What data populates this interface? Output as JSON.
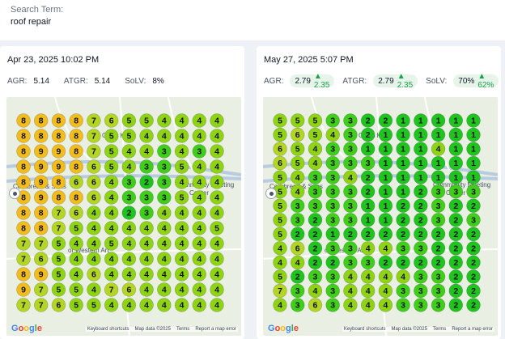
{
  "search": {
    "label": "Search Term:",
    "value": "roof repair"
  },
  "panels": [
    {
      "date": "Apr 23, 2025 10:02 PM",
      "metrics": {
        "agr_label": "AGR:",
        "agr": "5.14",
        "atgr_label": "ATGR:",
        "atgr": "5.14",
        "solv_label": "SoLV:",
        "solv": "8%"
      },
      "grid": [
        [
          8,
          8,
          8,
          8,
          7,
          6,
          5,
          5,
          4,
          4,
          4,
          4
        ],
        [
          8,
          8,
          8,
          8,
          7,
          5,
          5,
          4,
          4,
          4,
          4,
          4
        ],
        [
          8,
          9,
          9,
          8,
          7,
          5,
          4,
          4,
          3,
          4,
          3,
          4
        ],
        [
          8,
          9,
          9,
          8,
          6,
          5,
          4,
          3,
          3,
          5,
          4,
          4
        ],
        [
          8,
          9,
          8,
          6,
          6,
          4,
          3,
          2,
          3,
          4,
          4,
          4
        ],
        [
          8,
          9,
          8,
          8,
          6,
          4,
          3,
          3,
          3,
          5,
          4,
          4
        ],
        [
          8,
          8,
          7,
          6,
          4,
          4,
          2,
          3,
          4,
          4,
          4,
          4
        ],
        [
          8,
          8,
          7,
          5,
          4,
          4,
          4,
          4,
          4,
          4,
          4,
          5
        ],
        [
          7,
          7,
          5,
          4,
          4,
          5,
          4,
          4,
          4,
          4,
          4,
          4
        ],
        [
          7,
          6,
          5,
          4,
          4,
          4,
          4,
          4,
          4,
          4,
          4,
          4
        ],
        [
          8,
          9,
          5,
          4,
          6,
          4,
          4,
          4,
          4,
          4,
          4,
          4
        ],
        [
          9,
          7,
          5,
          5,
          4,
          7,
          6,
          4,
          4,
          4,
          4,
          4
        ],
        [
          7,
          7,
          6,
          5,
          5,
          4,
          4,
          4,
          4,
          4,
          4,
          4
        ]
      ]
    },
    {
      "date": "May 27, 2025 5:07 PM",
      "metrics": {
        "agr_label": "AGR:",
        "agr": "2.79",
        "agr_delta": "2.35",
        "atgr_label": "ATGR:",
        "atgr": "2.79",
        "atgr_delta": "2.35",
        "solv_label": "SoLV:",
        "solv": "70%",
        "solv_delta": "62%"
      },
      "grid": [
        [
          5,
          5,
          5,
          3,
          3,
          2,
          2,
          1,
          1,
          1,
          1,
          1
        ],
        [
          5,
          6,
          5,
          4,
          3,
          2,
          1,
          1,
          1,
          1,
          1,
          1
        ],
        [
          6,
          5,
          4,
          3,
          3,
          1,
          1,
          1,
          1,
          4,
          1,
          1
        ],
        [
          6,
          5,
          4,
          3,
          3,
          3,
          1,
          1,
          1,
          1,
          1,
          1
        ],
        [
          5,
          4,
          3,
          3,
          4,
          2,
          1,
          1,
          1,
          1,
          1,
          1
        ],
        [
          5,
          4,
          3,
          3,
          3,
          2,
          1,
          1,
          2,
          3,
          3,
          3
        ],
        [
          5,
          3,
          3,
          3,
          3,
          1,
          1,
          2,
          2,
          3,
          2,
          2
        ],
        [
          5,
          3,
          2,
          3,
          3,
          1,
          1,
          2,
          2,
          3,
          2,
          3
        ],
        [
          5,
          2,
          2,
          1,
          2,
          2,
          2,
          2,
          2,
          2,
          2,
          2
        ],
        [
          4,
          6,
          2,
          3,
          3,
          4,
          4,
          3,
          3,
          2,
          2,
          2
        ],
        [
          4,
          4,
          2,
          2,
          3,
          3,
          2,
          2,
          2,
          2,
          2,
          2
        ],
        [
          5,
          2,
          3,
          3,
          4,
          4,
          4,
          4,
          3,
          3,
          2,
          2
        ],
        [
          7,
          3,
          4,
          3,
          4,
          4,
          4,
          3,
          3,
          3,
          2,
          2
        ],
        [
          4,
          3,
          6,
          3,
          4,
          4,
          4,
          3,
          3,
          3,
          2,
          2
        ]
      ]
    }
  ],
  "map": {
    "labels": [
      "Cornbread & Sons",
      "Glass Knoll",
      "Community Meeting",
      "Center",
      "of Western Art"
    ],
    "google": [
      "G",
      "o",
      "o",
      "g",
      "l",
      "e"
    ],
    "footer": [
      "Keyboard shortcuts",
      "Map data ©2025",
      "Terms",
      "Report a map error"
    ]
  },
  "colors": {
    "rank_1_2": "#1fc41f",
    "rank_3": "#3fce1a",
    "rank_4_5": "#8fd414",
    "rank_6_7": "#b2d623",
    "rank_8_9": "#f2bd1c",
    "road": "#ffffff",
    "highway": "#b9cbe0",
    "text": "#111111"
  }
}
